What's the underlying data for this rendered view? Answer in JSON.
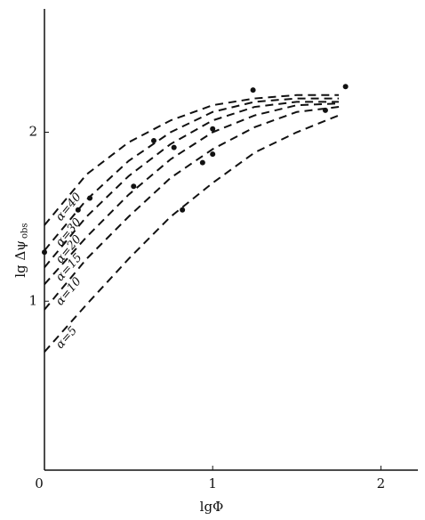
{
  "chart_data": {
    "type": "line",
    "x_label": "lgΦ",
    "y_label": "lg Δψ",
    "y_label_sub": "obs",
    "xlim": [
      0,
      2.22
    ],
    "ylim": [
      0,
      2.73
    ],
    "xticks": [
      0,
      1,
      2
    ],
    "yticks": [
      1,
      2
    ],
    "x": [
      0,
      0.25,
      0.5,
      0.75,
      1.0,
      1.25,
      1.5,
      1.75
    ],
    "series": [
      {
        "name": "α=5",
        "color": "#111111",
        "values": [
          0.7,
          0.98,
          1.25,
          1.5,
          1.7,
          1.88,
          2.0,
          2.1
        ]
      },
      {
        "name": "α=10",
        "color": "#111111",
        "values": [
          0.95,
          1.25,
          1.5,
          1.73,
          1.9,
          2.03,
          2.12,
          2.15
        ]
      },
      {
        "name": "α=15",
        "color": "#111111",
        "values": [
          1.1,
          1.38,
          1.63,
          1.84,
          2.0,
          2.1,
          2.16,
          2.17
        ]
      },
      {
        "name": "α=20",
        "color": "#111111",
        "values": [
          1.2,
          1.5,
          1.74,
          1.93,
          2.07,
          2.15,
          2.18,
          2.18
        ]
      },
      {
        "name": "α=30",
        "color": "#111111",
        "values": [
          1.3,
          1.6,
          1.83,
          2.0,
          2.12,
          2.18,
          2.2,
          2.2
        ]
      },
      {
        "name": "α=40",
        "color": "#111111",
        "values": [
          1.45,
          1.75,
          1.94,
          2.07,
          2.16,
          2.2,
          2.22,
          2.22
        ]
      }
    ],
    "points": {
      "color": "#111111",
      "x": [
        0,
        0.2,
        0.27,
        0.53,
        0.65,
        0.77,
        0.82,
        0.94,
        1.0,
        1.0,
        1.24,
        1.67,
        1.79
      ],
      "y": [
        1.29,
        1.54,
        1.61,
        1.68,
        1.95,
        1.91,
        1.54,
        1.82,
        1.87,
        2.02,
        2.25,
        2.13,
        2.27
      ]
    }
  }
}
